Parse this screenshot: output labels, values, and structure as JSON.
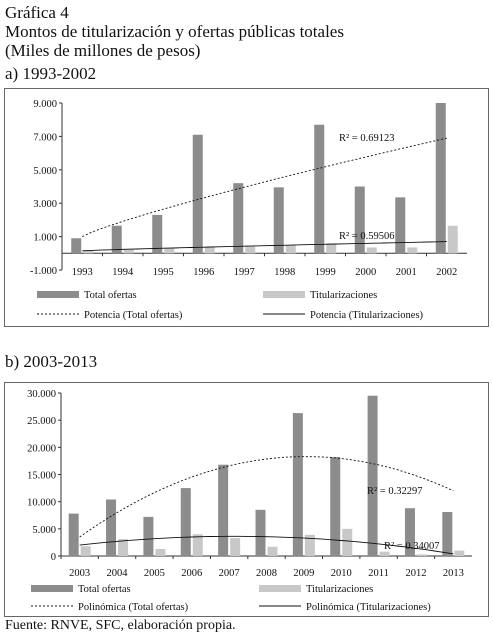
{
  "header": {
    "line1": "Gráfica 4",
    "line2": "Montos de titularización y ofertas públicas totales",
    "line3": "(Miles de millones de pesos)"
  },
  "source": "Fuente: RNVE, SFC, elaboración propia.",
  "colors": {
    "total": "#8c8c8c",
    "titul": "#c8c8c8",
    "axis": "#333333"
  },
  "chart_data": [
    {
      "type": "bar",
      "title": "a) 1993-2002",
      "categories": [
        "1993",
        "1994",
        "1995",
        "1996",
        "1997",
        "1998",
        "1999",
        "2000",
        "2001",
        "2002"
      ],
      "series": [
        {
          "name": "Total ofertas",
          "values": [
            900,
            1650,
            2300,
            7100,
            4200,
            3950,
            7700,
            4000,
            3350,
            9000
          ]
        },
        {
          "name": "Titularizaciones",
          "values": [
            180,
            220,
            280,
            380,
            420,
            500,
            600,
            350,
            350,
            1650
          ]
        }
      ],
      "ylim": [
        -1000,
        9000
      ],
      "yticks": [
        -1000,
        1000,
        3000,
        5000,
        7000,
        9000
      ],
      "ytick_labels": [
        "-1.000",
        "1.000",
        "3.000",
        "5.000",
        "7.000",
        "9.000"
      ],
      "trendlines": [
        {
          "name": "Potencia (Total ofertas)",
          "style": "dashed",
          "start": 1000,
          "end": 6900
        },
        {
          "name": "Potencia (Titularizaciones)",
          "style": "solid",
          "start": 150,
          "end": 700
        }
      ],
      "annotations": [
        "R² = 0.69123",
        "R² = 0.59506"
      ],
      "legend_position": "bottom"
    },
    {
      "type": "bar",
      "title": "b) 2003-2013",
      "categories": [
        "2003",
        "2004",
        "2005",
        "2006",
        "2007",
        "2008",
        "2009",
        "2010",
        "2011",
        "2012",
        "2013"
      ],
      "series": [
        {
          "name": "Total ofertas",
          "values": [
            7800,
            10400,
            7200,
            12500,
            16800,
            8500,
            26300,
            18200,
            29500,
            8800,
            8100
          ]
        },
        {
          "name": "Titularizaciones",
          "values": [
            1800,
            3100,
            1300,
            4000,
            3300,
            1700,
            3900,
            5000,
            800,
            300,
            1000
          ]
        }
      ],
      "ylim": [
        0,
        30000
      ],
      "yticks": [
        0,
        5000,
        10000,
        15000,
        20000,
        25000,
        30000
      ],
      "ytick_labels": [
        "0",
        "5.000",
        "10.000",
        "15.000",
        "20.000",
        "25.000",
        "30.000"
      ],
      "trendlines": [
        {
          "name": "Polinómica (Total ofertas)",
          "style": "dashed",
          "start": 3500,
          "peak": 18300,
          "end": 12000
        },
        {
          "name": "Polinómica (Titularizaciones)",
          "style": "solid",
          "start": 2000,
          "peak": 3300,
          "end": 400
        }
      ],
      "annotations": [
        "R² = 0.32297",
        "R² = 0.34007"
      ],
      "legend_position": "bottom"
    }
  ]
}
